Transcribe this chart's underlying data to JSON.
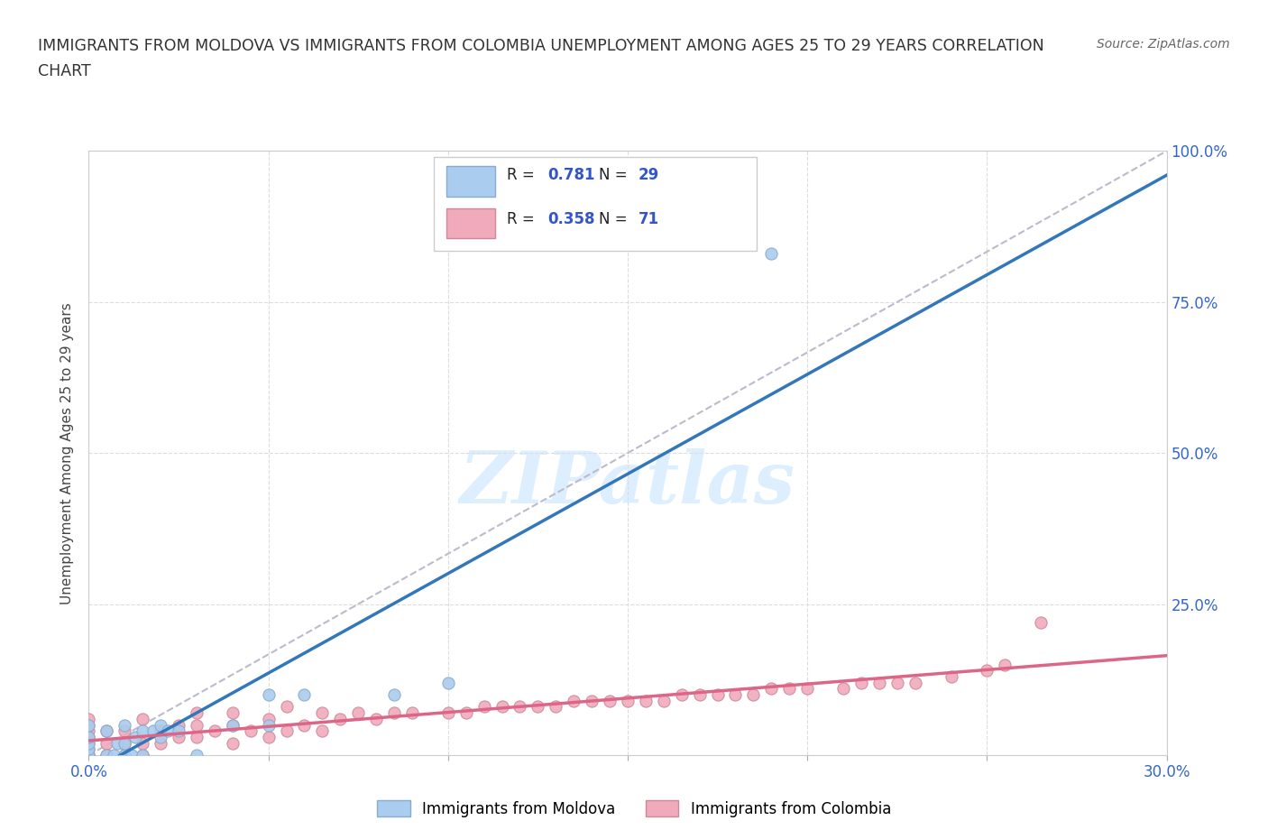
{
  "title_line1": "IMMIGRANTS FROM MOLDOVA VS IMMIGRANTS FROM COLOMBIA UNEMPLOYMENT AMONG AGES 25 TO 29 YEARS CORRELATION",
  "title_line2": "CHART",
  "source": "Source: ZipAtlas.com",
  "ylabel": "Unemployment Among Ages 25 to 29 years",
  "xlim": [
    0.0,
    0.3
  ],
  "ylim": [
    0.0,
    1.0
  ],
  "xticks": [
    0.0,
    0.05,
    0.1,
    0.15,
    0.2,
    0.25,
    0.3
  ],
  "xticklabels": [
    "0.0%",
    "",
    "",
    "",
    "",
    "",
    "30.0%"
  ],
  "yticks": [
    0.0,
    0.25,
    0.5,
    0.75,
    1.0
  ],
  "yticklabels_right": [
    "",
    "25.0%",
    "50.0%",
    "75.0%",
    "100.0%"
  ],
  "moldova_color": "#aaccee",
  "moldova_edge": "#88aacc",
  "colombia_color": "#f0aabb",
  "colombia_edge": "#cc8899",
  "moldova_R": 0.781,
  "moldova_N": 29,
  "colombia_R": 0.358,
  "colombia_N": 71,
  "moldova_line_color": "#3377bb",
  "colombia_line_color": "#dd6688",
  "ref_line_color": "#bbbbcc",
  "watermark_color": "#ddeeff",
  "legend_moldova": "Immigrants from Moldova",
  "legend_colombia": "Immigrants from Colombia",
  "moldova_x": [
    0.0,
    0.0,
    0.0,
    0.0,
    0.0,
    0.005,
    0.005,
    0.007,
    0.008,
    0.01,
    0.01,
    0.01,
    0.012,
    0.013,
    0.015,
    0.015,
    0.018,
    0.02,
    0.02,
    0.022,
    0.025,
    0.03,
    0.04,
    0.05,
    0.05,
    0.06,
    0.085,
    0.1,
    0.19
  ],
  "moldova_y": [
    0.0,
    0.01,
    0.02,
    0.03,
    0.05,
    0.0,
    0.04,
    0.0,
    0.02,
    0.0,
    0.02,
    0.05,
    0.0,
    0.03,
    0.0,
    0.04,
    0.04,
    0.03,
    0.05,
    0.04,
    0.04,
    0.0,
    0.05,
    0.05,
    0.1,
    0.1,
    0.1,
    0.12,
    0.83
  ],
  "colombia_x": [
    0.0,
    0.0,
    0.0,
    0.0,
    0.0,
    0.0,
    0.0,
    0.0,
    0.005,
    0.005,
    0.005,
    0.01,
    0.01,
    0.01,
    0.015,
    0.015,
    0.015,
    0.02,
    0.02,
    0.025,
    0.025,
    0.03,
    0.03,
    0.03,
    0.035,
    0.04,
    0.04,
    0.04,
    0.045,
    0.05,
    0.05,
    0.055,
    0.055,
    0.06,
    0.065,
    0.065,
    0.07,
    0.075,
    0.08,
    0.085,
    0.09,
    0.1,
    0.105,
    0.11,
    0.115,
    0.12,
    0.125,
    0.13,
    0.135,
    0.14,
    0.145,
    0.15,
    0.155,
    0.16,
    0.165,
    0.17,
    0.175,
    0.18,
    0.185,
    0.19,
    0.195,
    0.2,
    0.21,
    0.215,
    0.22,
    0.225,
    0.23,
    0.24,
    0.25,
    0.255,
    0.265
  ],
  "colombia_y": [
    0.0,
    0.0,
    0.01,
    0.02,
    0.03,
    0.04,
    0.05,
    0.06,
    0.0,
    0.02,
    0.04,
    0.0,
    0.02,
    0.04,
    0.0,
    0.02,
    0.06,
    0.02,
    0.04,
    0.03,
    0.05,
    0.03,
    0.05,
    0.07,
    0.04,
    0.02,
    0.05,
    0.07,
    0.04,
    0.03,
    0.06,
    0.04,
    0.08,
    0.05,
    0.04,
    0.07,
    0.06,
    0.07,
    0.06,
    0.07,
    0.07,
    0.07,
    0.07,
    0.08,
    0.08,
    0.08,
    0.08,
    0.08,
    0.09,
    0.09,
    0.09,
    0.09,
    0.09,
    0.09,
    0.1,
    0.1,
    0.1,
    0.1,
    0.1,
    0.11,
    0.11,
    0.11,
    0.11,
    0.12,
    0.12,
    0.12,
    0.12,
    0.13,
    0.14,
    0.15,
    0.22
  ]
}
